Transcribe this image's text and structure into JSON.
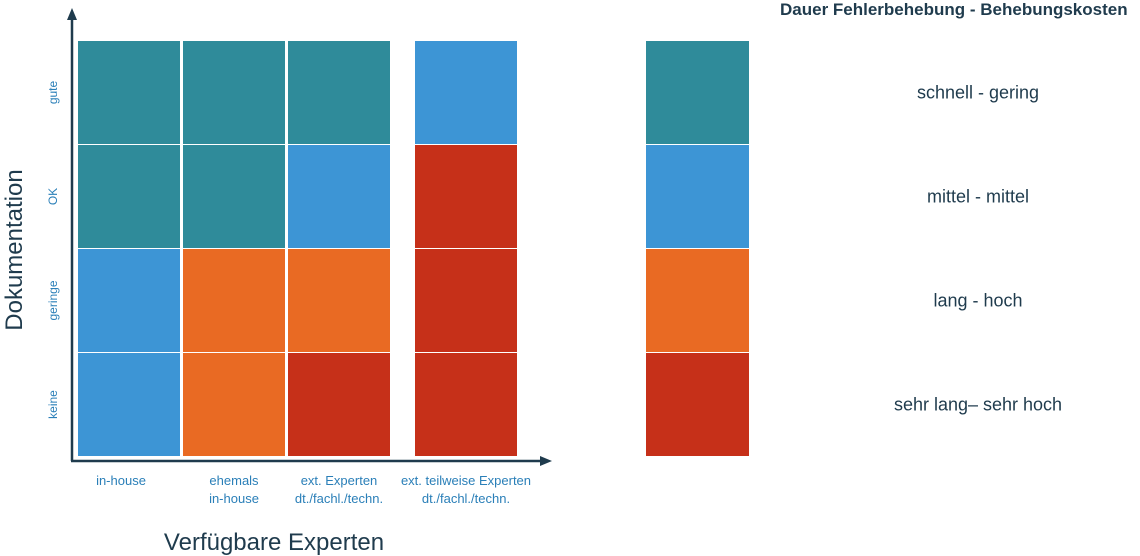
{
  "chart_data": {
    "type": "heatmap",
    "title": "Dauer Fehlerbehebung - Behebungskosten",
    "xlabel": "Verfügbare Experten",
    "ylabel": "Dokumentation",
    "x_categories": [
      [
        "in-house"
      ],
      [
        "ehemals",
        "in-house"
      ],
      [
        "ext. Experten",
        "dt./fachl./techn."
      ],
      [
        "ext. teilweise Experten",
        "dt./fachl./techn."
      ]
    ],
    "y_categories": [
      "gute",
      "OK",
      "geringe",
      "keine"
    ],
    "legend": [
      {
        "level": 1,
        "label": "schnell - gering",
        "color": "#2f8b9a"
      },
      {
        "level": 2,
        "label": "mittel - mittel",
        "color": "#3d95d5"
      },
      {
        "level": 3,
        "label": "lang - hoch",
        "color": "#e96a23"
      },
      {
        "level": 4,
        "label": "sehr lang– sehr hoch",
        "color": "#c63019"
      }
    ],
    "values": [
      [
        1,
        1,
        1,
        2
      ],
      [
        1,
        1,
        2,
        4
      ],
      [
        2,
        3,
        3,
        4
      ],
      [
        2,
        3,
        4,
        4
      ]
    ],
    "axis_color": "#1f3b4d",
    "tick_color": "#2a7fb8",
    "legend_placement": "right"
  }
}
